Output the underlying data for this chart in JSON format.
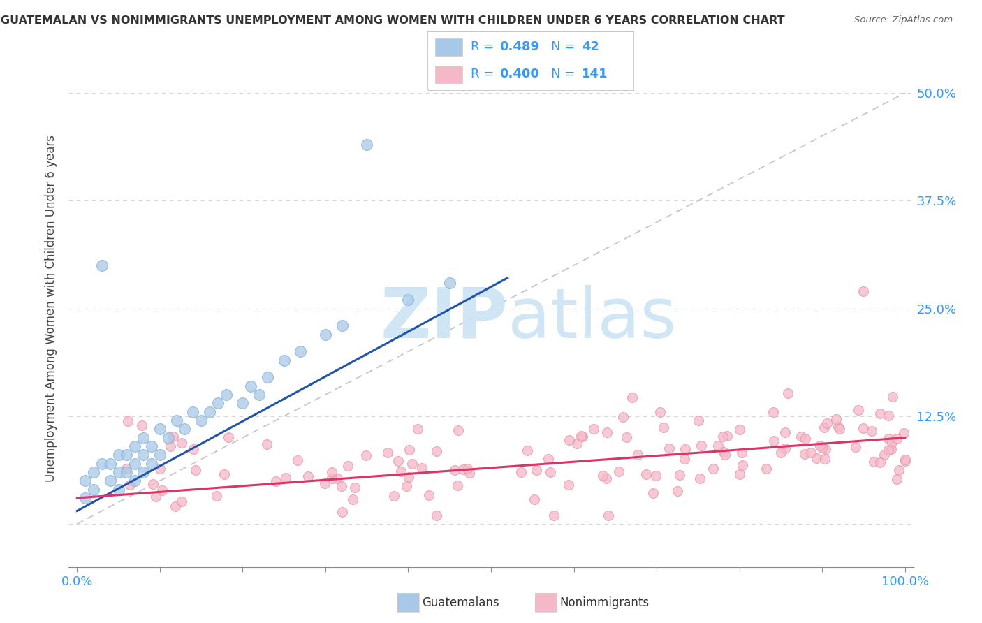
{
  "title": "GUATEMALAN VS NONIMMIGRANTS UNEMPLOYMENT AMONG WOMEN WITH CHILDREN UNDER 6 YEARS CORRELATION CHART",
  "source": "Source: ZipAtlas.com",
  "ylabel": "Unemployment Among Women with Children Under 6 years",
  "blue_color": "#a8c8e8",
  "blue_edge_color": "#7aafd4",
  "pink_color": "#f5b8c8",
  "pink_edge_color": "#e890a8",
  "blue_line_color": "#2255aa",
  "pink_line_color": "#dd3366",
  "diag_color": "#aaaaaa",
  "background_color": "#ffffff",
  "grid_color": "#bbbbbb",
  "legend_color": "#3399ff",
  "title_color": "#333333",
  "watermark_color": "#cce4f4",
  "blue_r": "0.489",
  "blue_n": "42",
  "pink_r": "0.400",
  "pink_n": "141",
  "ytick_color": "#3399ff",
  "xtick_color": "#3399ff"
}
